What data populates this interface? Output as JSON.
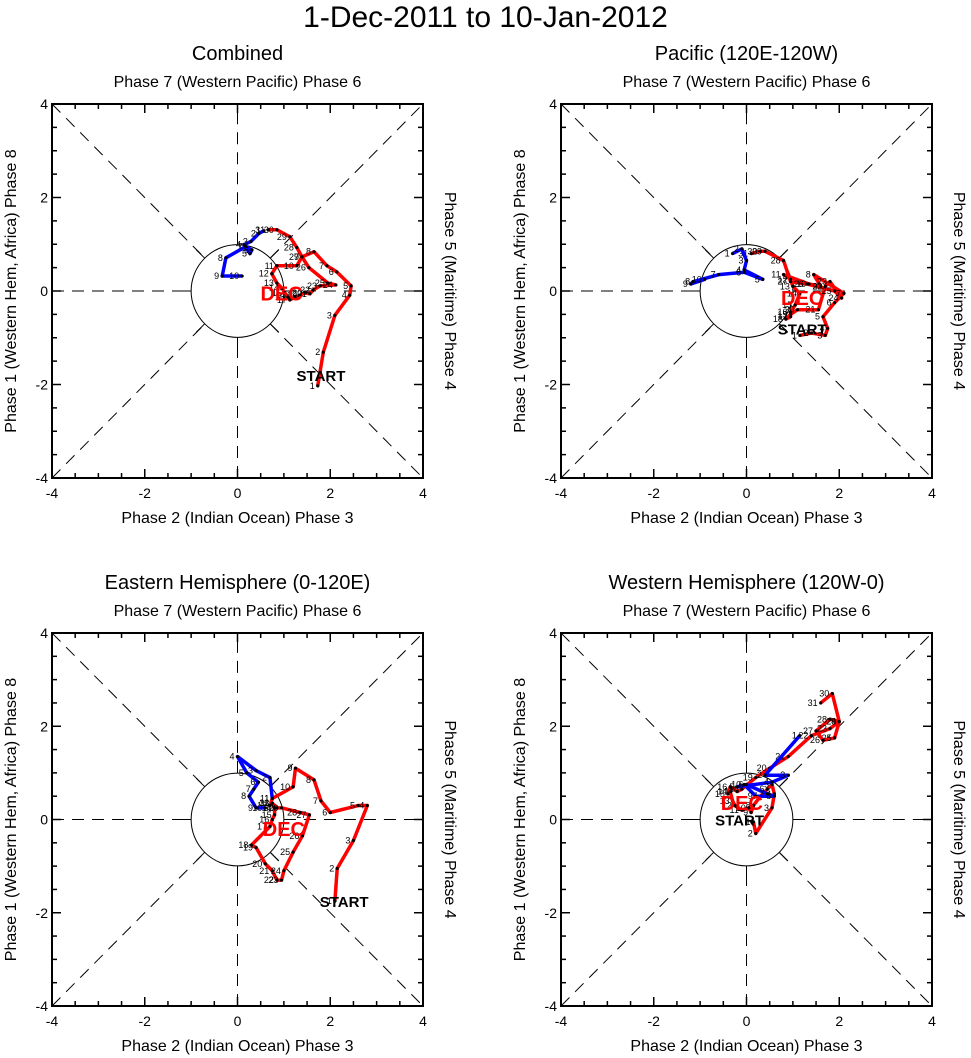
{
  "chart_data": {
    "type": "line",
    "title": "1-Dec-2011 to 10-Jan-2012",
    "axis": {
      "xlim": [
        -4,
        4
      ],
      "ylim": [
        -4,
        4
      ],
      "ticks": [
        -4,
        -2,
        0,
        2,
        4
      ],
      "tick_labels": [
        "-4",
        "-2",
        "0",
        "2",
        "4"
      ],
      "minor_step": 0.5,
      "unit_circle_radius": 1,
      "grid": "dashed quadrant and diagonal lines"
    },
    "labels": {
      "top": "Phase 7 (Western Pacific) Phase 6",
      "bottom": "Phase 2 (Indian Ocean) Phase 3",
      "left": "Phase 1 (Western Hem, Africa) Phase 8",
      "right": "Phase 5 (Maritime) Phase 4",
      "start": "START",
      "month_label": "DEC"
    },
    "series_colors": {
      "DEC": "#ff0000",
      "JAN": "#0000ff"
    },
    "panels": [
      {
        "title": "Combined",
        "start_label_at": [
          1.8,
          -1.8
        ],
        "dec_label_at": [
          0.95,
          -0.05
        ],
        "series": [
          {
            "name": "DEC",
            "days": [
              1,
              2,
              3,
              4,
              5,
              6,
              7,
              8,
              9,
              10,
              11,
              12,
              13,
              14,
              15,
              16,
              17,
              18,
              19,
              20,
              21,
              22,
              23,
              24,
              25,
              26,
              27,
              28,
              29,
              30,
              31
            ],
            "x": [
              1.73,
              1.85,
              2.1,
              2.42,
              2.45,
              2.14,
              1.93,
              1.65,
              1.39,
              1.28,
              0.85,
              0.74,
              0.85,
              0.96,
              1.02,
              1.09,
              1.13,
              1.24,
              1.35,
              1.46,
              1.56,
              1.63,
              1.78,
              2.12,
              1.95,
              1.54,
              1.39,
              1.28,
              1.13,
              0.85,
              0.66
            ],
            "y": [
              -2.03,
              -1.31,
              -0.52,
              -0.09,
              0.11,
              0.41,
              0.54,
              0.84,
              0.73,
              0.54,
              0.54,
              0.37,
              0.17,
              0.06,
              -0.04,
              -0.13,
              -0.19,
              -0.13,
              -0.09,
              -0.04,
              -0.06,
              0.02,
              0.11,
              0.13,
              0.17,
              0.5,
              0.73,
              0.93,
              1.16,
              1.31,
              1.31
            ]
          },
          {
            "name": "JAN",
            "days": [
              1,
              2,
              3,
              4,
              5,
              6,
              7,
              8,
              9,
              10
            ],
            "x": [
              0.57,
              0.46,
              0.29,
              0.14,
              0.27,
              0.31,
              0.18,
              -0.25,
              -0.33,
              0.1
            ],
            "y": [
              1.29,
              1.23,
              1.06,
              0.99,
              0.8,
              0.88,
              0.95,
              0.71,
              0.32,
              0.32
            ]
          }
        ]
      },
      {
        "title": "Pacific (120E-120W)",
        "start_label_at": [
          1.2,
          -0.8
        ],
        "dec_label_at": [
          1.2,
          -0.15
        ],
        "series": [
          {
            "name": "DEC",
            "days": [
              1,
              2,
              3,
              4,
              5,
              6,
              7,
              8,
              9,
              10,
              11,
              12,
              13,
              14,
              15,
              16,
              17,
              18,
              19,
              20,
              21,
              22,
              23,
              24,
              25,
              26,
              27,
              28,
              29,
              30,
              31
            ],
            "x": [
              1.15,
              1.4,
              1.7,
              1.75,
              1.65,
              1.9,
              2.1,
              1.45,
              1.6,
              1.35,
              0.8,
              0.95,
              1.0,
              1.15,
              1.05,
              0.95,
              0.95,
              0.85,
              0.95,
              1.1,
              1.55,
              1.7,
              1.8,
              2.05,
              1.9,
              1.3,
              0.95,
              0.8,
              0.4,
              0.3,
              0.1
            ],
            "y": [
              -0.95,
              -0.9,
              -0.95,
              -0.8,
              -0.55,
              -0.25,
              -0.05,
              0.35,
              0.1,
              0.15,
              0.35,
              0.25,
              0.1,
              -0.05,
              -0.3,
              -0.45,
              -0.55,
              -0.6,
              -0.5,
              -0.4,
              -0.4,
              0.1,
              0.2,
              -0.15,
              0.0,
              0.15,
              0.2,
              0.65,
              0.85,
              0.85,
              0.8
            ]
          },
          {
            "name": "JAN",
            "days": [
              1,
              2,
              3,
              4,
              5,
              6,
              7,
              8,
              9,
              10
            ],
            "x": [
              -0.3,
              -0.1,
              0.0,
              -0.05,
              0.35,
              -0.05,
              -0.6,
              -1.15,
              -1.2,
              -0.9
            ],
            "y": [
              0.8,
              0.9,
              0.65,
              0.45,
              0.25,
              0.4,
              0.35,
              0.2,
              0.15,
              0.25
            ]
          }
        ]
      },
      {
        "title": "Eastern Hemisphere (0-120E)",
        "start_label_at": [
          2.3,
          -1.75
        ],
        "dec_label_at": [
          1.0,
          -0.2
        ],
        "series": [
          {
            "name": "DEC",
            "days": [
              1,
              2,
              3,
              4,
              5,
              6,
              7,
              8,
              9,
              10,
              11,
              12,
              13,
              14,
              15,
              16,
              17,
              18,
              19,
              20,
              21,
              22,
              23,
              24,
              25,
              26,
              27,
              28,
              29,
              30,
              31
            ],
            "x": [
              2.1,
              2.15,
              2.5,
              2.8,
              2.6,
              2.0,
              1.8,
              1.65,
              1.25,
              1.2,
              0.75,
              0.7,
              0.75,
              0.8,
              0.8,
              0.75,
              0.7,
              0.3,
              0.4,
              0.6,
              0.75,
              0.85,
              0.95,
              1.0,
              1.2,
              1.4,
              1.55,
              1.35,
              0.95,
              0.85,
              0.75
            ],
            "y": [
              -1.75,
              -1.05,
              -0.45,
              0.3,
              0.3,
              0.15,
              0.4,
              0.85,
              1.1,
              0.7,
              0.45,
              0.3,
              0.35,
              0.25,
              0.1,
              0.0,
              -0.15,
              -0.55,
              -0.6,
              -0.95,
              -1.1,
              -1.3,
              -1.3,
              -1.1,
              -0.7,
              -0.35,
              0.1,
              0.15,
              0.25,
              0.25,
              0.35
            ]
          },
          {
            "name": "JAN",
            "days": [
              1,
              2,
              3,
              4,
              5,
              6,
              7,
              8,
              9,
              10
            ],
            "x": [
              0.75,
              0.7,
              0.4,
              0.0,
              0.2,
              0.45,
              0.35,
              0.25,
              0.4,
              0.6
            ],
            "y": [
              0.45,
              0.9,
              1.05,
              1.35,
              1.0,
              0.8,
              0.65,
              0.5,
              0.25,
              0.25
            ]
          }
        ]
      },
      {
        "title": "Western Hemisphere (120W-0)",
        "start_label_at": [
          -0.15,
          0.0
        ],
        "dec_label_at": [
          -0.1,
          0.35
        ],
        "series": [
          {
            "name": "DEC",
            "days": [
              1,
              2,
              3,
              4,
              5,
              6,
              7,
              8,
              9,
              10,
              11,
              12,
              13,
              14,
              15,
              16,
              17,
              18,
              19,
              20,
              21,
              22,
              23,
              24,
              25,
              26,
              27,
              28,
              29,
              30,
              31
            ],
            "x": [
              0.15,
              0.2,
              0.55,
              0.6,
              0.55,
              0.45,
              0.3,
              0.15,
              0.1,
              0.05,
              -0.1,
              -0.25,
              -0.3,
              -0.35,
              -0.4,
              -0.35,
              -0.2,
              -0.1,
              0.2,
              0.5,
              0.9,
              1.4,
              1.8,
              2.0,
              1.9,
              1.65,
              1.5,
              1.8,
              2.0,
              1.85,
              1.6
            ],
            "y": [
              -0.05,
              -0.3,
              0.25,
              0.55,
              0.75,
              0.65,
              0.5,
              0.3,
              0.15,
              0.25,
              0.2,
              0.3,
              0.4,
              0.6,
              0.55,
              0.7,
              0.6,
              0.65,
              0.9,
              1.1,
              1.35,
              1.8,
              1.95,
              2.1,
              1.75,
              1.7,
              1.9,
              2.15,
              2.1,
              2.7,
              2.5
            ]
          },
          {
            "name": "JAN",
            "days": [
              1,
              2,
              3,
              4,
              5,
              6,
              7,
              8,
              9,
              10
            ],
            "x": [
              1.15,
              0.4,
              0.9,
              0.55,
              -0.2,
              0.0,
              0.45,
              0.6,
              0.2,
              -0.05
            ],
            "y": [
              1.8,
              0.95,
              0.95,
              0.8,
              0.7,
              0.75,
              0.55,
              0.5,
              0.5,
              0.75
            ]
          }
        ]
      }
    ]
  }
}
